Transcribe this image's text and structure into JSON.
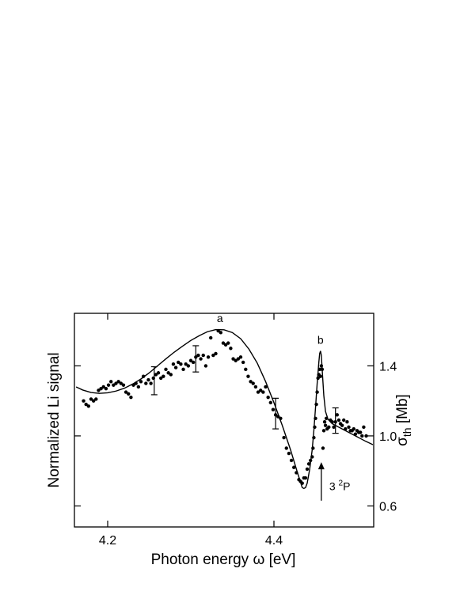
{
  "chart_data": {
    "type": "scatter",
    "xlabel": "Photon energy ω [eV]",
    "ylabel_left": "Normalized Li signal",
    "ylabel_right_base": "σ",
    "ylabel_right_sub": "th",
    "ylabel_right_unit": " [Mb]",
    "xlim": [
      4.16,
      4.52
    ],
    "ylim": [
      0.48,
      1.7
    ],
    "x_ticks": [
      4.2,
      4.4
    ],
    "x_tick_labels": [
      "4.2",
      "4.4"
    ],
    "y_right_ticks": [
      0.6,
      1.0,
      1.4
    ],
    "y_right_tick_labels": [
      "0.6",
      "1.0",
      "1.4"
    ],
    "grid": false,
    "annotations": {
      "peak_a": {
        "text": "a",
        "x": 4.335,
        "y": 1.615
      },
      "peak_b": {
        "text": "b",
        "x": 4.456,
        "y": 1.5
      },
      "level": {
        "prefix": "3 ",
        "sup": "2",
        "suffix": "P",
        "x": 4.457
      }
    },
    "series": [
      {
        "kind": "points",
        "points": [
          [
            4.171,
            1.2
          ],
          [
            4.174,
            1.18
          ],
          [
            4.177,
            1.17
          ],
          [
            4.18,
            1.21
          ],
          [
            4.183,
            1.2
          ],
          [
            4.186,
            1.21
          ],
          [
            4.189,
            1.26
          ],
          [
            4.192,
            1.27
          ],
          [
            4.195,
            1.28
          ],
          [
            4.198,
            1.27
          ],
          [
            4.201,
            1.29
          ],
          [
            4.204,
            1.31
          ],
          [
            4.207,
            1.29
          ],
          [
            4.21,
            1.3
          ],
          [
            4.213,
            1.31
          ],
          [
            4.216,
            1.3
          ],
          [
            4.219,
            1.29
          ],
          [
            4.222,
            1.25
          ],
          [
            4.225,
            1.24
          ],
          [
            4.228,
            1.22
          ],
          [
            4.231,
            1.29
          ],
          [
            4.234,
            1.3
          ],
          [
            4.237,
            1.28
          ],
          [
            4.24,
            1.31
          ],
          [
            4.243,
            1.34
          ],
          [
            4.246,
            1.3
          ],
          [
            4.249,
            1.32
          ],
          [
            4.252,
            1.3
          ],
          [
            4.255,
            1.33
          ],
          [
            4.258,
            1.35
          ],
          [
            4.261,
            1.36
          ],
          [
            4.264,
            1.33
          ],
          [
            4.267,
            1.34
          ],
          [
            4.27,
            1.38
          ],
          [
            4.273,
            1.36
          ],
          [
            4.276,
            1.35
          ],
          [
            4.279,
            1.41
          ],
          [
            4.282,
            1.39
          ],
          [
            4.285,
            1.42
          ],
          [
            4.288,
            1.41
          ],
          [
            4.291,
            1.38
          ],
          [
            4.294,
            1.41
          ],
          [
            4.297,
            1.4
          ],
          [
            4.3,
            1.43
          ],
          [
            4.303,
            1.42
          ],
          [
            4.306,
            1.45
          ],
          [
            4.309,
            1.46
          ],
          [
            4.312,
            1.44
          ],
          [
            4.315,
            1.46
          ],
          [
            4.318,
            1.4
          ],
          [
            4.321,
            1.45
          ],
          [
            4.324,
            1.56
          ],
          [
            4.327,
            1.46
          ],
          [
            4.33,
            1.47
          ],
          [
            4.333,
            1.6
          ],
          [
            4.336,
            1.59
          ],
          [
            4.339,
            1.53
          ],
          [
            4.342,
            1.52
          ],
          [
            4.345,
            1.53
          ],
          [
            4.348,
            1.5
          ],
          [
            4.351,
            1.44
          ],
          [
            4.354,
            1.43
          ],
          [
            4.357,
            1.44
          ],
          [
            4.36,
            1.45
          ],
          [
            4.363,
            1.42
          ],
          [
            4.366,
            1.38
          ],
          [
            4.369,
            1.34
          ],
          [
            4.372,
            1.31
          ],
          [
            4.375,
            1.3
          ],
          [
            4.378,
            1.28
          ],
          [
            4.381,
            1.25
          ],
          [
            4.384,
            1.26
          ],
          [
            4.387,
            1.25
          ],
          [
            4.39,
            1.28
          ],
          [
            4.393,
            1.22
          ],
          [
            4.396,
            1.19
          ],
          [
            4.399,
            1.15
          ],
          [
            4.402,
            1.12
          ],
          [
            4.405,
            1.11
          ],
          [
            4.408,
            1.1
          ],
          [
            4.412,
            0.99
          ],
          [
            4.415,
            0.93
          ],
          [
            4.418,
            0.9
          ],
          [
            4.421,
            0.86
          ],
          [
            4.424,
            0.82
          ],
          [
            4.427,
            0.79
          ],
          [
            4.43,
            0.75
          ],
          [
            4.432,
            0.74
          ],
          [
            4.434,
            0.73
          ],
          [
            4.436,
            0.76
          ],
          [
            4.438,
            0.76
          ],
          [
            4.44,
            0.81
          ],
          [
            4.442,
            0.84
          ],
          [
            4.444,
            0.86
          ],
          [
            4.446,
            0.88
          ],
          [
            4.447,
            0.93
          ],
          [
            4.448,
            0.99
          ],
          [
            4.449,
            1.05
          ],
          [
            4.45,
            1.1
          ],
          [
            4.451,
            1.18
          ],
          [
            4.452,
            1.25
          ],
          [
            4.453,
            1.33
          ],
          [
            4.454,
            1.35
          ],
          [
            4.455,
            1.38
          ],
          [
            4.456,
            1.34
          ],
          [
            4.457,
            1.4
          ],
          [
            4.458,
            1.38
          ],
          [
            4.459,
            0.93
          ],
          [
            4.46,
            1.03
          ],
          [
            4.461,
            1.08
          ],
          [
            4.462,
            1.06
          ],
          [
            4.463,
            1.1
          ],
          [
            4.464,
            1.04
          ],
          [
            4.466,
            1.05
          ],
          [
            4.468,
            1.09
          ],
          [
            4.47,
            1.08
          ],
          [
            4.472,
            1.05
          ],
          [
            4.474,
            1.08
          ],
          [
            4.476,
            1.12
          ],
          [
            4.478,
            1.09
          ],
          [
            4.48,
            1.07
          ],
          [
            4.482,
            1.06
          ],
          [
            4.484,
            1.09
          ],
          [
            4.486,
            1.04
          ],
          [
            4.488,
            1.08
          ],
          [
            4.49,
            1.05
          ],
          [
            4.492,
            1.03
          ],
          [
            4.494,
            1.03
          ],
          [
            4.496,
            1.04
          ],
          [
            4.498,
            1.01
          ],
          [
            4.5,
            1.03
          ],
          [
            4.502,
            1.02
          ],
          [
            4.504,
            1.02
          ],
          [
            4.506,
            1.0
          ],
          [
            4.508,
            1.05
          ],
          [
            4.511,
            1.0
          ]
        ]
      },
      {
        "kind": "curve",
        "points": [
          [
            4.162,
            1.28
          ],
          [
            4.17,
            1.262
          ],
          [
            4.18,
            1.248
          ],
          [
            4.19,
            1.243
          ],
          [
            4.2,
            1.246
          ],
          [
            4.21,
            1.256
          ],
          [
            4.22,
            1.272
          ],
          [
            4.23,
            1.296
          ],
          [
            4.24,
            1.325
          ],
          [
            4.25,
            1.36
          ],
          [
            4.26,
            1.4
          ],
          [
            4.27,
            1.44
          ],
          [
            4.28,
            1.478
          ],
          [
            4.29,
            1.512
          ],
          [
            4.3,
            1.545
          ],
          [
            4.31,
            1.572
          ],
          [
            4.32,
            1.595
          ],
          [
            4.33,
            1.607
          ],
          [
            4.34,
            1.606
          ],
          [
            4.35,
            1.59
          ],
          [
            4.36,
            1.555
          ],
          [
            4.37,
            1.495
          ],
          [
            4.38,
            1.415
          ],
          [
            4.39,
            1.31
          ],
          [
            4.4,
            1.19
          ],
          [
            4.41,
            1.06
          ],
          [
            4.42,
            0.92
          ],
          [
            4.428,
            0.795
          ],
          [
            4.432,
            0.735
          ],
          [
            4.434,
            0.705
          ],
          [
            4.436,
            0.7
          ],
          [
            4.438,
            0.705
          ],
          [
            4.44,
            0.73
          ],
          [
            4.443,
            0.81
          ],
          [
            4.446,
            0.92
          ],
          [
            4.448,
            1.03
          ],
          [
            4.45,
            1.16
          ],
          [
            4.452,
            1.3
          ],
          [
            4.454,
            1.42
          ],
          [
            4.455,
            1.47
          ],
          [
            4.456,
            1.485
          ],
          [
            4.457,
            1.46
          ],
          [
            4.458,
            1.38
          ],
          [
            4.46,
            1.23
          ],
          [
            4.462,
            1.14
          ],
          [
            4.465,
            1.095
          ],
          [
            4.47,
            1.07
          ],
          [
            4.48,
            1.045
          ],
          [
            4.49,
            1.02
          ],
          [
            4.5,
            0.995
          ],
          [
            4.51,
            0.97
          ],
          [
            4.519,
            0.95
          ]
        ]
      },
      {
        "kind": "error_bars",
        "bars": [
          {
            "x": 4.256,
            "low": 1.235,
            "high": 1.395
          },
          {
            "x": 4.306,
            "low": 1.365,
            "high": 1.515
          },
          {
            "x": 4.402,
            "low": 1.04,
            "high": 1.215
          },
          {
            "x": 4.474,
            "low": 1.015,
            "high": 1.16
          }
        ]
      }
    ]
  }
}
